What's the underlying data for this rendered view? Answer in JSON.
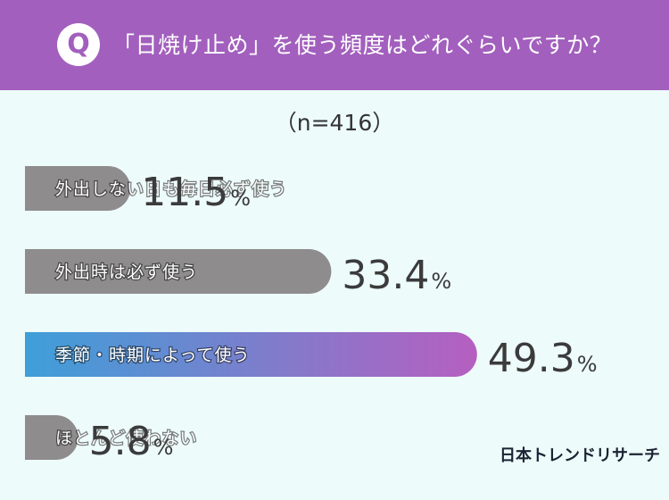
{
  "header": {
    "q_mark": "Q",
    "question": "「日焼け止め」を使う頻度はどれぐらいですか？",
    "background_color": "#a25fbd"
  },
  "sample_size": "（n=416）",
  "brand": "日本トレンドリサーチ",
  "chart_data": {
    "type": "bar",
    "orientation": "horizontal",
    "title": "「日焼け止め」を使う頻度はどれぐらいですか？",
    "subtitle": "（n=416）",
    "unit": "%",
    "categories": [
      "外出しない日も毎日必ず使う",
      "外出時は必ず使う",
      "季節・時期によって使う",
      "ほとんど使わない"
    ],
    "values": [
      11.5,
      33.4,
      49.3,
      5.8
    ],
    "value_labels": [
      "11.5",
      "33.4",
      "49.3",
      "5.8"
    ],
    "highlight_index": 2,
    "colors": {
      "default_bar": "#8e8c8c",
      "highlight_gradient_start": "#3e9fd9",
      "highlight_gradient_end": "#b65fc0",
      "text": "#3b3b3b"
    }
  }
}
